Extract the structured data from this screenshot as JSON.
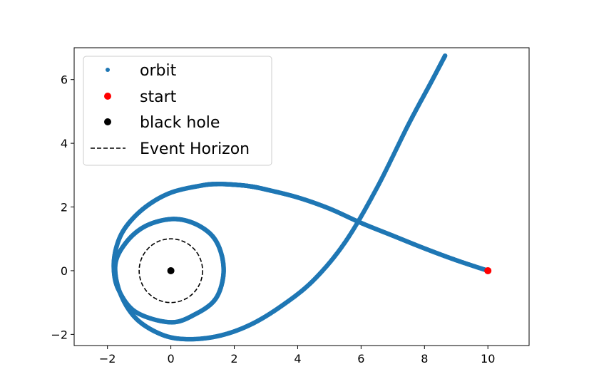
{
  "chart_data": {
    "type": "scatter",
    "title": "",
    "xlabel": "",
    "ylabel": "",
    "xlim": [
      -3.05,
      11.3
    ],
    "ylim": [
      -2.35,
      7.0
    ],
    "xticks": [
      -2,
      0,
      2,
      4,
      6,
      8,
      10
    ],
    "yticks": [
      -2,
      0,
      2,
      4,
      6
    ],
    "xtick_labels": [
      "−2",
      "0",
      "2",
      "4",
      "6",
      "8",
      "10"
    ],
    "ytick_labels": [
      "−2",
      "0",
      "2",
      "4",
      "6"
    ],
    "grid": false,
    "legend_position": "upper-left",
    "series": [
      {
        "name": "orbit",
        "kind": "dots",
        "color": "#1f77b4",
        "points": [
          [
            10.0,
            0.0
          ],
          [
            9.0,
            0.33
          ],
          [
            8.0,
            0.7
          ],
          [
            7.0,
            1.1
          ],
          [
            6.0,
            1.5
          ],
          [
            5.0,
            1.95
          ],
          [
            4.0,
            2.3
          ],
          [
            3.0,
            2.55
          ],
          [
            2.5,
            2.65
          ],
          [
            2.0,
            2.7
          ],
          [
            1.5,
            2.72
          ],
          [
            1.0,
            2.68
          ],
          [
            0.0,
            2.45
          ],
          [
            -0.8,
            2.0
          ],
          [
            -1.4,
            1.4
          ],
          [
            -1.7,
            0.8
          ],
          [
            -1.8,
            0.1
          ],
          [
            -1.65,
            -0.6
          ],
          [
            -1.1,
            -1.3
          ],
          [
            0.0,
            -1.62
          ],
          [
            0.8,
            -1.35
          ],
          [
            1.4,
            -0.9
          ],
          [
            1.65,
            -0.2
          ],
          [
            1.6,
            0.5
          ],
          [
            1.3,
            1.1
          ],
          [
            0.7,
            1.5
          ],
          [
            0.0,
            1.62
          ],
          [
            -0.8,
            1.4
          ],
          [
            -1.4,
            0.9
          ],
          [
            -1.75,
            0.2
          ],
          [
            -1.6,
            -0.7
          ],
          [
            -1.1,
            -1.5
          ],
          [
            -0.3,
            -2.0
          ],
          [
            0.5,
            -2.15
          ],
          [
            1.5,
            -2.05
          ],
          [
            2.5,
            -1.7
          ],
          [
            3.5,
            -1.1
          ],
          [
            4.5,
            -0.3
          ],
          [
            5.5,
            0.9
          ],
          [
            6.5,
            2.6
          ],
          [
            7.5,
            4.6
          ],
          [
            8.2,
            5.9
          ],
          [
            8.65,
            6.75
          ]
        ]
      },
      {
        "name": "start",
        "kind": "marker",
        "color": "#ff0000",
        "points": [
          [
            10.0,
            0.0
          ]
        ]
      },
      {
        "name": "black hole",
        "kind": "marker",
        "color": "#000000",
        "points": [
          [
            0.0,
            0.0
          ]
        ]
      },
      {
        "name": "Event Horizon",
        "kind": "dashed-circle",
        "color": "#000000",
        "center": [
          0.0,
          0.0
        ],
        "radius": 1.0
      }
    ]
  }
}
